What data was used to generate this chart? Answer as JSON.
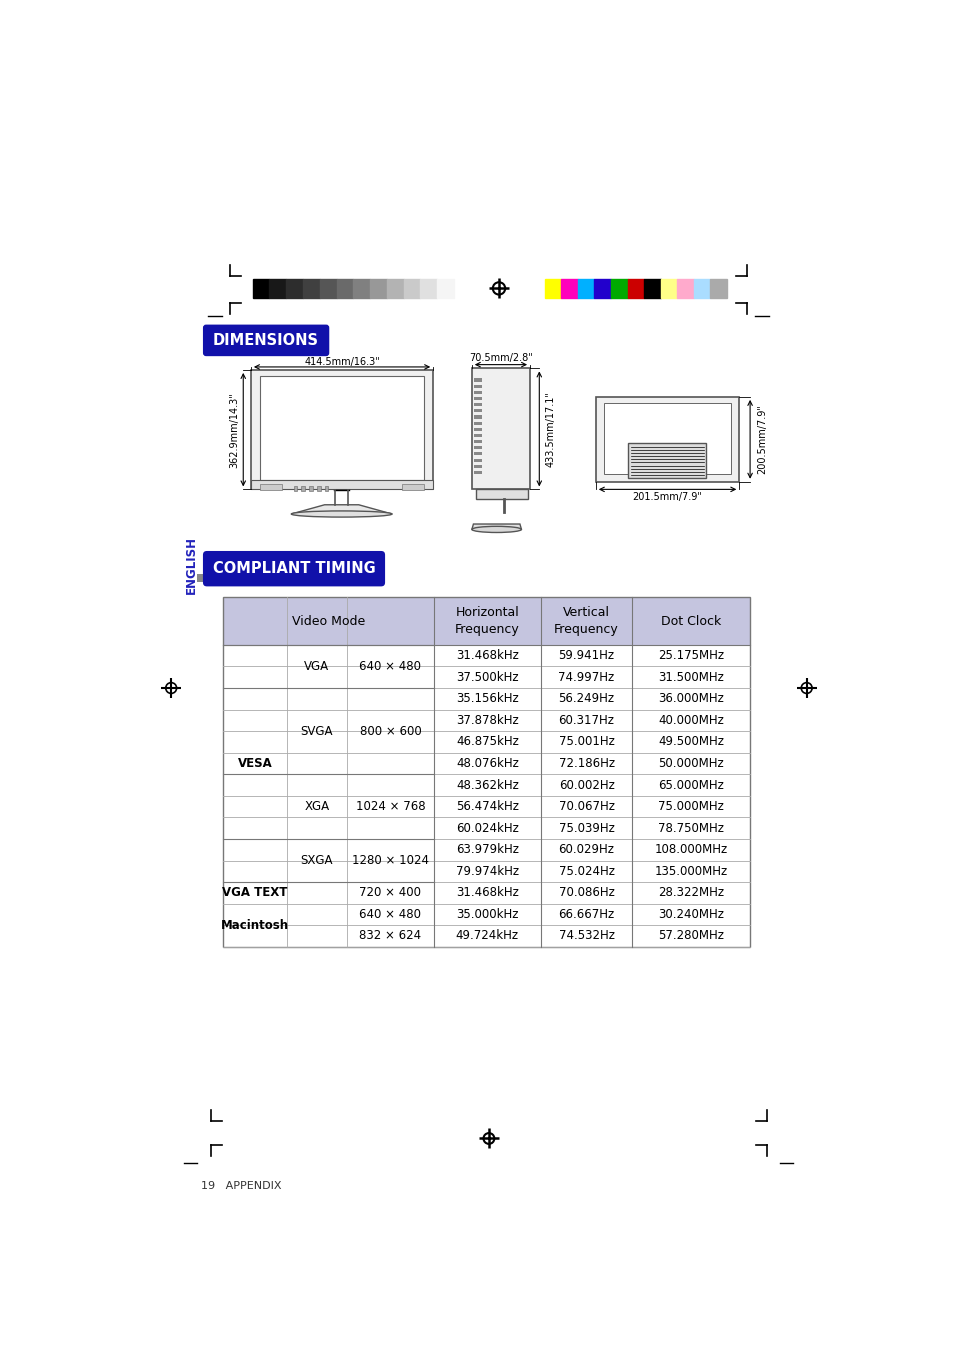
{
  "bg_color": "#ffffff",
  "grayscale_colors": [
    "#000000",
    "#181818",
    "#2d2d2d",
    "#404040",
    "#565656",
    "#6a6a6a",
    "#808080",
    "#989898",
    "#b3b3b3",
    "#cacaca",
    "#e0e0e0",
    "#f5f5f5"
  ],
  "color_bars": [
    "#ffff00",
    "#ff00bb",
    "#00b0ff",
    "#2200cc",
    "#00aa00",
    "#cc0000",
    "#000000",
    "#ffff88",
    "#ffaacc",
    "#aaddff",
    "#aaaaaa"
  ],
  "dimensions_label": "DIMENSIONS",
  "compliant_timing_label": "COMPLIANT TIMING",
  "english_label": "ENGLISH",
  "dim_front_width": "414.5mm/16.3\"",
  "dim_front_height": "362.9mm/14.3\"",
  "dim_side_depth_top": "70.5mm/2.8\"",
  "dim_side_height": "433.5mm/17.1\"",
  "dim_top_width": "201.5mm/7.9\"",
  "dim_top_depth": "200.5mm/7.9\"",
  "table_header_bg": "#c5c5df",
  "table_data": [
    [
      "VESA",
      "VGA",
      "640 × 480",
      "31.468kHz",
      "59.941Hz",
      "25.175MHz"
    ],
    [
      "VESA",
      "VGA",
      "640 × 480",
      "37.500kHz",
      "74.997Hz",
      "31.500MHz"
    ],
    [
      "VESA",
      "SVGA",
      "800 × 600",
      "35.156kHz",
      "56.249Hz",
      "36.000MHz"
    ],
    [
      "VESA",
      "SVGA",
      "800 × 600",
      "37.878kHz",
      "60.317Hz",
      "40.000MHz"
    ],
    [
      "VESA",
      "SVGA",
      "800 × 600",
      "46.875kHz",
      "75.001Hz",
      "49.500MHz"
    ],
    [
      "VESA",
      "SVGA",
      "800 × 600",
      "48.076kHz",
      "72.186Hz",
      "50.000MHz"
    ],
    [
      "VESA",
      "XGA",
      "1024 × 768",
      "48.362kHz",
      "60.002Hz",
      "65.000MHz"
    ],
    [
      "VESA",
      "XGA",
      "1024 × 768",
      "56.474kHz",
      "70.067Hz",
      "75.000MHz"
    ],
    [
      "VESA",
      "XGA",
      "1024 × 768",
      "60.024kHz",
      "75.039Hz",
      "78.750MHz"
    ],
    [
      "VESA",
      "SXGA",
      "1280 × 1024",
      "63.979kHz",
      "60.029Hz",
      "108.000MHz"
    ],
    [
      "VESA",
      "SXGA",
      "1280 × 1024",
      "79.974kHz",
      "75.024Hz",
      "135.000MHz"
    ],
    [
      "VGA TEXT",
      "",
      "720 × 400",
      "31.468kHz",
      "70.086Hz",
      "28.322MHz"
    ],
    [
      "Macintosh",
      "",
      "640 × 480",
      "35.000kHz",
      "66.667Hz",
      "30.240MHz"
    ],
    [
      "Macintosh",
      "",
      "832 × 624",
      "49.724kHz",
      "74.532Hz",
      "57.280MHz"
    ]
  ],
  "footer_text": "19   APPENDIX"
}
